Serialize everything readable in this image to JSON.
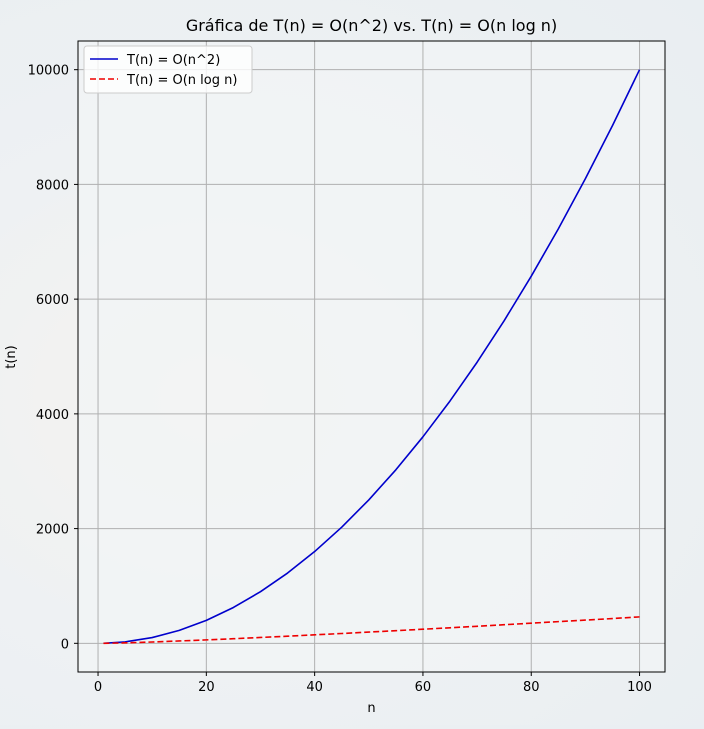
{
  "chart_data": {
    "type": "line",
    "title": "Gráfica de T(n) = O(n^2) vs. T(n) = O(n log n)",
    "xlabel": "n",
    "ylabel": "t(n)",
    "xlim": [
      -3.7,
      104.7
    ],
    "ylim": [
      -500,
      10500
    ],
    "xticks": [
      0,
      20,
      40,
      60,
      80,
      100
    ],
    "yticks": [
      0,
      2000,
      4000,
      6000,
      8000,
      10000
    ],
    "grid": true,
    "legend_position": "top-left",
    "x": [
      1,
      5,
      10,
      15,
      20,
      25,
      30,
      35,
      40,
      45,
      50,
      55,
      60,
      65,
      70,
      75,
      80,
      85,
      90,
      95,
      100
    ],
    "series": [
      {
        "name": "T(n) = O(n^2)",
        "color": "#0000cc",
        "style": "solid",
        "values": [
          1,
          25,
          100,
          225,
          400,
          625,
          900,
          1225,
          1600,
          2025,
          2500,
          3025,
          3600,
          4225,
          4900,
          5625,
          6400,
          7225,
          8100,
          9025,
          10000
        ]
      },
      {
        "name": "T(n) = O(n log n)",
        "color": "#ee0000",
        "style": "dashed",
        "values": [
          0,
          8,
          23,
          41,
          60,
          80,
          102,
          124,
          148,
          171,
          196,
          220,
          246,
          271,
          297,
          324,
          351,
          378,
          405,
          432,
          461
        ]
      }
    ]
  }
}
